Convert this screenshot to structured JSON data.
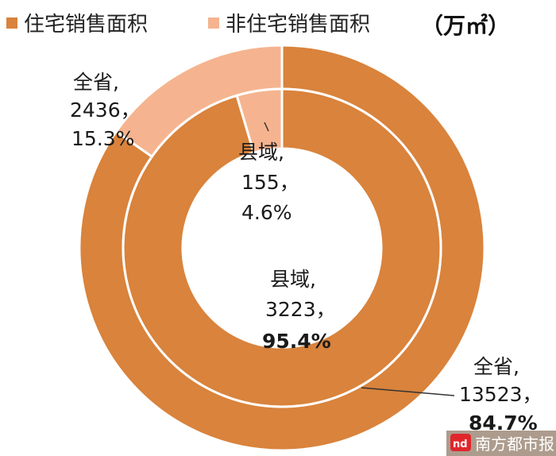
{
  "chart_data": {
    "type": "donut",
    "unit": "（万㎡）",
    "legend": [
      {
        "name": "住宅销售面积",
        "color": "#D9833C"
      },
      {
        "name": "非住宅销售面积",
        "color": "#F5B48F"
      }
    ],
    "rings": [
      {
        "ring": "outer",
        "label": "全省",
        "slices": [
          {
            "series": "非住宅销售面积",
            "value": 2436,
            "percent": "15.3%",
            "text_value": "2436，",
            "text_name": "全省,"
          },
          {
            "series": "住宅销售面积",
            "value": 13523,
            "percent": "84.7%",
            "text_value": "13523，",
            "text_name": "全省,"
          }
        ]
      },
      {
        "ring": "inner",
        "label": "县域",
        "slices": [
          {
            "series": "非住宅销售面积",
            "value": 155,
            "percent": "4.6%",
            "text_value": "155，",
            "text_name": "县域,"
          },
          {
            "series": "住宅销售面积",
            "value": 3223,
            "percent": "95.4%",
            "text_value": "3223，",
            "text_name": "县域,"
          }
        ]
      }
    ]
  },
  "watermark": {
    "text": "南方都市报",
    "logo_text": "nd",
    "logo_color": "#E0262B"
  }
}
